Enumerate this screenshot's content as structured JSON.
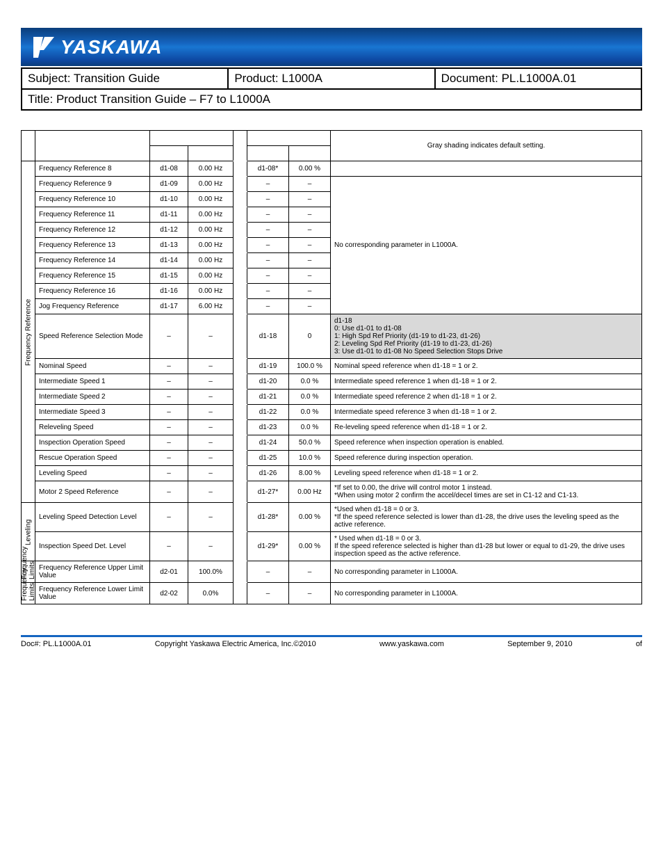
{
  "logo_text": "YASKAWA",
  "header": {
    "subject_label": "Subject: ",
    "subject_value": "Transition Guide",
    "product_label": "Product:  ",
    "product_value": "L1000A",
    "document_label": "Document: ",
    "document_value": "PL.L1000A.01",
    "title_label": "Title: ",
    "title_value": "Product Transition Guide – F7 to L1000A"
  },
  "legend": "Gray shading indicates default setting.",
  "groups": {
    "freq_ref": "Frequency Reference",
    "leveling": "Leveling",
    "freq_lim": "Frequency Limits",
    "freq_lim2": "Frequency Limits"
  },
  "rows": [
    {
      "g": "freq_ref",
      "desc": "Frequency Reference 8",
      "a1": "d1-08",
      "a2": "0.00 Hz",
      "b1": "d1-08*",
      "b2": "0.00 %",
      "notes": "",
      "span": 1
    },
    {
      "g": "freq_ref",
      "desc": "Frequency Reference 9",
      "a1": "d1-09",
      "a2": "0.00 Hz",
      "b1": "–",
      "b2": "–",
      "notes_span_start": 9,
      "notes": "No corresponding parameter in L1000A."
    },
    {
      "g": "freq_ref",
      "desc": "Frequency Reference 10",
      "a1": "d1-10",
      "a2": "0.00 Hz",
      "b1": "–",
      "b2": "–"
    },
    {
      "g": "freq_ref",
      "desc": "Frequency Reference 11",
      "a1": "d1-11",
      "a2": "0.00 Hz",
      "b1": "–",
      "b2": "–"
    },
    {
      "g": "freq_ref",
      "desc": "Frequency Reference 12",
      "a1": "d1-12",
      "a2": "0.00 Hz",
      "b1": "–",
      "b2": "–"
    },
    {
      "g": "freq_ref",
      "desc": "Frequency Reference 13",
      "a1": "d1-13",
      "a2": "0.00 Hz",
      "b1": "–",
      "b2": "–"
    },
    {
      "g": "freq_ref",
      "desc": "Frequency Reference 14",
      "a1": "d1-14",
      "a2": "0.00 Hz",
      "b1": "–",
      "b2": "–"
    },
    {
      "g": "freq_ref",
      "desc": "Frequency Reference 15",
      "a1": "d1-15",
      "a2": "0.00 Hz",
      "b1": "–",
      "b2": "–"
    },
    {
      "g": "freq_ref",
      "desc": "Frequency Reference 16",
      "a1": "d1-16",
      "a2": "0.00 Hz",
      "b1": "–",
      "b2": "–"
    },
    {
      "g": "freq_ref",
      "desc": "Jog Frequency Reference",
      "a1": "d1-17",
      "a2": "6.00 Hz",
      "b1": "–",
      "b2": "–"
    },
    {
      "g": "freq_ref",
      "desc": "Speed Reference Selection Mode",
      "a1": "–",
      "a2": "–",
      "b1": "d1-18",
      "b2": "0",
      "notes": "d1-18\n0: Use d1-01 to d1-08\n1: High Spd Ref Priority (d1-19 to d1-23, d1-26)\n2: Leveling Spd Ref Priority (d1-19 to d1-23, d1-26)\n3: Use d1-01 to d1-08 No Speed Selection Stops Drive",
      "shaded": true,
      "cls": "midlg"
    },
    {
      "g": "freq_ref",
      "desc": "Nominal Speed",
      "a1": "–",
      "a2": "–",
      "b1": "d1-19",
      "b2": "100.0 %",
      "notes": "Nominal speed reference when d1-18 = 1 or 2."
    },
    {
      "g": "freq_ref",
      "desc": "Intermediate Speed 1",
      "a1": "–",
      "a2": "–",
      "b1": "d1-20",
      "b2": "0.0 %",
      "notes": "Intermediate speed reference 1 when d1-18 = 1 or 2."
    },
    {
      "g": "freq_ref",
      "desc": "Intermediate Speed 2",
      "a1": "–",
      "a2": "–",
      "b1": "d1-21",
      "b2": "0.0 %",
      "notes": "Intermediate speed reference 2 when d1-18 = 1 or 2."
    },
    {
      "g": "freq_ref",
      "desc": "Intermediate Speed 3",
      "a1": "–",
      "a2": "–",
      "b1": "d1-22",
      "b2": "0.0 %",
      "notes": "Intermediate speed reference 3 when d1-18 = 1 or 2."
    },
    {
      "g": "freq_ref",
      "desc": "Releveling Speed",
      "a1": "–",
      "a2": "–",
      "b1": "d1-23",
      "b2": "0.0 %",
      "notes": "Re-leveling speed reference when d1-18 = 1 or 2."
    },
    {
      "g": "freq_ref",
      "desc": "Inspection Operation Speed",
      "a1": "–",
      "a2": "–",
      "b1": "d1-24",
      "b2": "50.0 %",
      "notes": "Speed reference when inspection operation is enabled."
    },
    {
      "g": "freq_ref",
      "desc": "Rescue Operation Speed",
      "a1": "–",
      "a2": "–",
      "b1": "d1-25",
      "b2": "10.0 %",
      "notes": "Speed reference during inspection operation."
    },
    {
      "g": "freq_ref",
      "desc": "Leveling Speed",
      "a1": "–",
      "a2": "–",
      "b1": "d1-26",
      "b2": "8.00 %",
      "notes": "Leveling speed reference when d1-18 = 1 or 2."
    },
    {
      "g": "freq_ref",
      "desc": "Motor 2 Speed Reference",
      "a1": "–",
      "a2": "–",
      "b1": "d1-27*",
      "b2": "0.00 Hz",
      "notes": "*If set to 0.00, the drive will control motor 1 instead.\n*When using motor 2 confirm the accel/decel times are set in C1-12 and C1-13.",
      "cls": "mid"
    },
    {
      "g": "leveling",
      "desc": "Leveling Speed Detection Level",
      "a1": "–",
      "a2": "–",
      "b1": "d1-28*",
      "b2": "0.00 %",
      "notes": "*Used when d1-18 = 0 or 3.\n*If the speed reference selected is lower than d1-28, the drive uses the leveling speed as the active reference.",
      "cls": "mid"
    },
    {
      "g": "leveling",
      "desc": "Inspection Speed Det. Level",
      "a1": "–",
      "a2": "–",
      "b1": "d1-29*",
      "b2": "0.00 %",
      "notes": "* Used when d1-18 = 0 or 3.\nIf the speed reference selected is higher than d1-28 but lower or equal to d1-29, the drive uses inspection speed as the active reference.",
      "cls": "big"
    },
    {
      "g": "freq_lim",
      "desc": "Frequency Reference Upper Limit Value",
      "a1": "d2-01",
      "a2": "100.0%",
      "b1": "–",
      "b2": "–",
      "notes": "No corresponding parameter in L1000A.",
      "cls": "bigger"
    },
    {
      "g": "freq_lim2",
      "desc": "Frequency Reference Lower Limit Value",
      "a1": "d2-02",
      "a2": "0.0%",
      "b1": "–",
      "b2": "–",
      "notes": "No corresponding parameter in L1000A.",
      "cls": "midlg"
    }
  ],
  "footer": {
    "doc": "Doc#: PL.L1000A.01",
    "copyright": "Copyright Yaskawa Electric America, Inc.©2010",
    "url": "www.yaskawa.com",
    "date": "September 9, 2010",
    "page": "of"
  }
}
